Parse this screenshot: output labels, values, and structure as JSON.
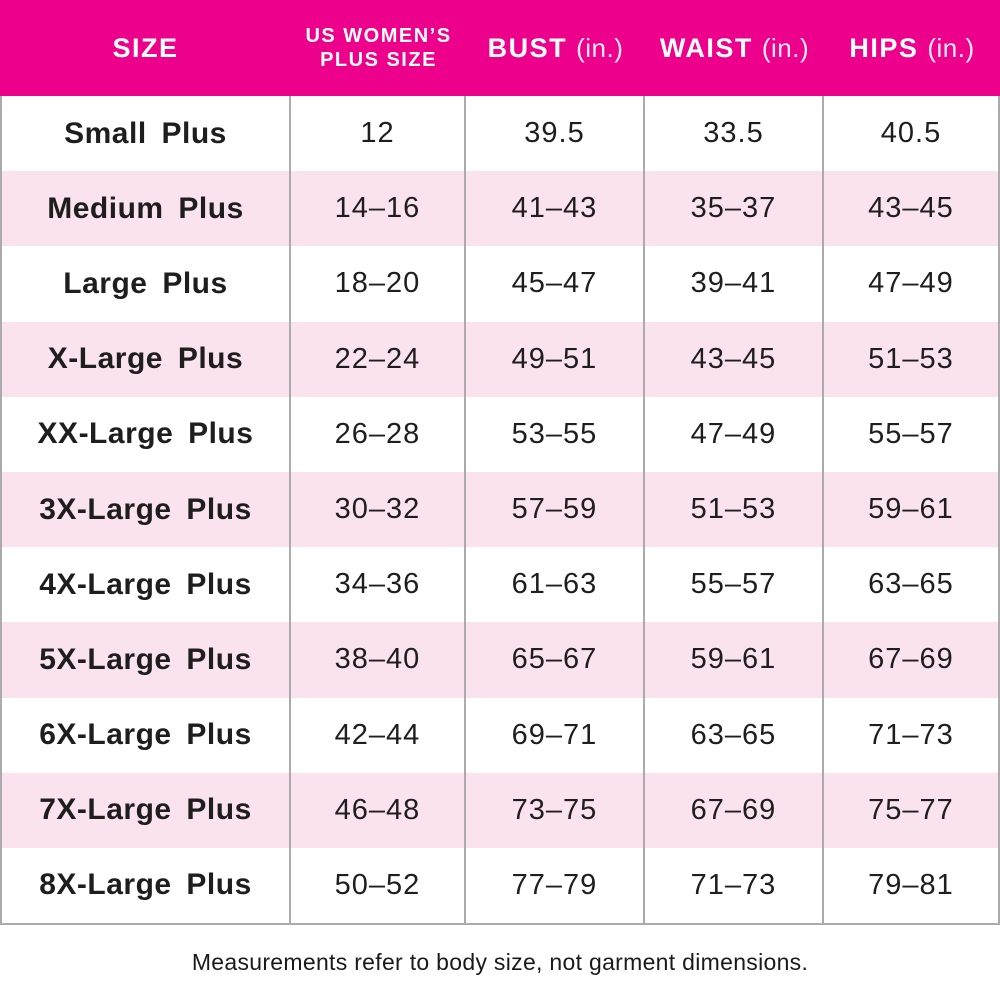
{
  "colors": {
    "header_bg": "#EC008C",
    "header_text": "#FFFFFF",
    "row_bg": "#FFFFFF",
    "row_alt_bg": "#FAE3EE",
    "grid_line": "#ABABAB",
    "body_text": "#1E1E1E"
  },
  "header": {
    "size": "SIZE",
    "plus_size": "US WOMEN’S PLUS SIZE",
    "bust": "BUST",
    "bust_unit": "(in.)",
    "waist": "WAIST",
    "waist_unit": "(in.)",
    "hips": "HIPS",
    "hips_unit": "(in.)"
  },
  "footnote": "Measurements refer to body size, not garment dimensions.",
  "chart_data": {
    "type": "table",
    "title": "Plus size chart",
    "columns": [
      "SIZE",
      "US WOMEN’S PLUS SIZE",
      "BUST (in.)",
      "WAIST (in.)",
      "HIPS (in.)"
    ],
    "rows": [
      {
        "size": "Small Plus",
        "plus_size": "12",
        "bust": "39.5",
        "waist": "33.5",
        "hips": "40.5"
      },
      {
        "size": "Medium Plus",
        "plus_size": "14–16",
        "bust": "41–43",
        "waist": "35–37",
        "hips": "43–45"
      },
      {
        "size": "Large Plus",
        "plus_size": "18–20",
        "bust": "45–47",
        "waist": "39–41",
        "hips": "47–49"
      },
      {
        "size": "X-Large Plus",
        "plus_size": "22–24",
        "bust": "49–51",
        "waist": "43–45",
        "hips": "51–53"
      },
      {
        "size": "XX-Large Plus",
        "plus_size": "26–28",
        "bust": "53–55",
        "waist": "47–49",
        "hips": "55–57"
      },
      {
        "size": "3X-Large Plus",
        "plus_size": "30–32",
        "bust": "57–59",
        "waist": "51–53",
        "hips": "59–61"
      },
      {
        "size": "4X-Large Plus",
        "plus_size": "34–36",
        "bust": "61–63",
        "waist": "55–57",
        "hips": "63–65"
      },
      {
        "size": "5X-Large Plus",
        "plus_size": "38–40",
        "bust": "65–67",
        "waist": "59–61",
        "hips": "67–69"
      },
      {
        "size": "6X-Large Plus",
        "plus_size": "42–44",
        "bust": "69–71",
        "waist": "63–65",
        "hips": "71–73"
      },
      {
        "size": "7X-Large Plus",
        "plus_size": "46–48",
        "bust": "73–75",
        "waist": "67–69",
        "hips": "75–77"
      },
      {
        "size": "8X-Large Plus",
        "plus_size": "50–52",
        "bust": "77–79",
        "waist": "71–73",
        "hips": "79–81"
      }
    ]
  }
}
